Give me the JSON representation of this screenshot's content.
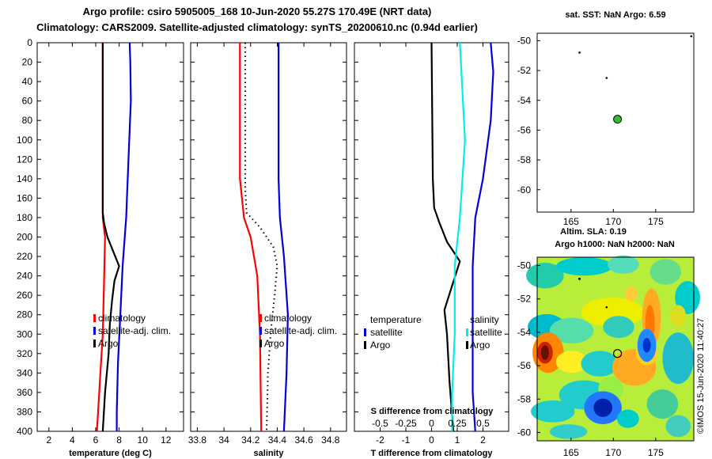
{
  "title_line1": "Argo profile: csiro 5905005_168 10-Jun-2020 55.27S 170.49E (NRT data)",
  "title_line2": "Climatology: CARS2009. Satellite-adjusted climatology: synTS_20200610.nc (0.94d earlier)",
  "colors": {
    "climatology": "#ff0000",
    "satellite": "#0000dd",
    "argo": "#000000",
    "satellite_salinity": "#00eeee",
    "marker_fill": "#33bb33"
  },
  "chart_data": [
    {
      "type": "line",
      "id": "temperature",
      "xlabel": "temperature (deg C)",
      "ylabel": "",
      "xlim": [
        1,
        13.5
      ],
      "ylim": [
        400,
        0
      ],
      "xticks": [
        2,
        4,
        6,
        8,
        10,
        12
      ],
      "yticks": [
        0,
        20,
        40,
        60,
        80,
        100,
        120,
        140,
        160,
        180,
        200,
        220,
        240,
        260,
        280,
        300,
        320,
        340,
        360,
        380,
        400
      ],
      "legend": [
        "climatology",
        "satellite-adj. clim.",
        "Argo"
      ],
      "series": [
        {
          "name": "climatology",
          "color": "#ff0000",
          "depth": [
            0,
            140,
            180,
            200,
            250,
            300,
            340,
            380,
            400
          ],
          "values": [
            6.6,
            6.6,
            6.6,
            6.8,
            6.7,
            6.6,
            6.4,
            6.2,
            6.1
          ]
        },
        {
          "name": "satellite-adj. clim.",
          "color": "#0000dd",
          "depth": [
            0,
            20,
            60,
            120,
            180,
            230,
            280,
            330,
            380,
            400
          ],
          "values": [
            8.9,
            8.95,
            9.0,
            8.8,
            8.6,
            8.3,
            8.1,
            7.9,
            7.8,
            7.8
          ]
        },
        {
          "name": "Argo",
          "color": "#000000",
          "depth": [
            0,
            100,
            175,
            185,
            200,
            215,
            230,
            245,
            265,
            290,
            320,
            360,
            400
          ],
          "values": [
            6.6,
            6.6,
            6.6,
            6.7,
            7.0,
            7.5,
            8.0,
            7.6,
            7.4,
            7.2,
            7.1,
            6.8,
            6.6
          ]
        }
      ]
    },
    {
      "type": "line",
      "id": "salinity",
      "xlabel": "salinity",
      "xlim": [
        33.75,
        34.92
      ],
      "ylim": [
        400,
        0
      ],
      "xticks": [
        33.8,
        34,
        34.2,
        34.4,
        34.6,
        34.8
      ],
      "legend": [
        "climatology",
        "satellite-adj. clim.",
        "Argo"
      ],
      "series": [
        {
          "name": "climatology",
          "color": "#ff0000",
          "depth": [
            0,
            140,
            180,
            200,
            240,
            300,
            400
          ],
          "values": [
            34.12,
            34.12,
            34.15,
            34.2,
            34.25,
            34.27,
            34.28
          ]
        },
        {
          "name": "satellite-adj. clim.",
          "color": "#0000dd",
          "depth": [
            0,
            140,
            180,
            220,
            280,
            340,
            400
          ],
          "values": [
            34.41,
            34.41,
            34.42,
            34.45,
            34.48,
            34.47,
            34.45
          ]
        },
        {
          "name": "Argo",
          "color": "#000000",
          "style": "dotted",
          "depth": [
            0,
            150,
            175,
            190,
            210,
            230,
            260,
            300,
            340,
            400
          ],
          "values": [
            34.16,
            34.16,
            34.17,
            34.27,
            34.37,
            34.4,
            34.38,
            34.35,
            34.33,
            34.32
          ]
        }
      ]
    },
    {
      "type": "line",
      "id": "difference",
      "xlabel": "T difference from climatology",
      "xlabel_top": "S difference from climatology",
      "xlim": [
        -3,
        3
      ],
      "ylim": [
        400,
        0
      ],
      "xticks_T": [
        -2,
        -1,
        0,
        1,
        2
      ],
      "xticks_T_labels": [
        "-2",
        "-1",
        "0",
        "1",
        "2"
      ],
      "xticks_S_labels": [
        "-0.5",
        "-0.25",
        "0",
        "0.25",
        "0.5"
      ],
      "legend_temperature": [
        "temperature",
        "satellite",
        "Argo"
      ],
      "legend_salinity": [
        "salinity",
        "satellite",
        "Argo"
      ],
      "series": [
        {
          "name": "T argo",
          "color": "#000000",
          "depth": [
            0,
            140,
            170,
            185,
            205,
            225,
            250,
            275,
            300,
            350,
            400
          ],
          "values": [
            0.0,
            0.05,
            0.1,
            0.3,
            0.6,
            1.1,
            0.8,
            0.5,
            0.6,
            0.7,
            0.85
          ]
        },
        {
          "name": "T satellite",
          "color": "#0000dd",
          "depth": [
            0,
            30,
            80,
            140,
            180,
            230,
            300,
            360,
            400
          ],
          "values": [
            2.3,
            2.4,
            2.3,
            2.0,
            1.7,
            1.6,
            1.6,
            1.6,
            1.7
          ]
        },
        {
          "name": "S satellite",
          "color": "#00eeee",
          "depth": [
            0,
            100,
            180,
            230,
            300,
            360,
            400
          ],
          "values": [
            1.1,
            1.3,
            1.1,
            0.9,
            0.9,
            0.8,
            0.8
          ]
        }
      ]
    },
    {
      "type": "scatter",
      "id": "sst-map",
      "title": "sat. SST: NaN Argo: 6.59",
      "xlim": [
        161,
        179.5
      ],
      "ylim": [
        -61.5,
        -49.5
      ],
      "xticks": [
        165,
        170,
        175
      ],
      "yticks": [
        -50,
        -52,
        -54,
        -56,
        -58,
        -60
      ],
      "xtick_labels": [
        "165",
        "170",
        "175"
      ],
      "ytick_labels": [
        "-50",
        "-52",
        "-54",
        "-56",
        "-58",
        "-60"
      ],
      "points": [
        {
          "lon": 170.49,
          "lat": -55.27,
          "kind": "argo"
        },
        {
          "lon": 166,
          "lat": -50.8,
          "kind": "island"
        },
        {
          "lon": 169.2,
          "lat": -52.5,
          "kind": "island"
        },
        {
          "lon": 179.2,
          "lat": -49.7,
          "kind": "island"
        }
      ]
    },
    {
      "type": "heatmap",
      "id": "sla-map",
      "title1": "Altim. SLA: 0.19",
      "title2": "Argo h1000: NaN h2000: NaN",
      "xlim": [
        161,
        179.5
      ],
      "ylim": [
        -60.5,
        -49.5
      ],
      "xticks": [
        165,
        170,
        175
      ],
      "yticks": [
        -50,
        -52,
        -54,
        -56,
        -58,
        -60
      ],
      "xtick_labels": [
        "165",
        "170",
        "175"
      ],
      "ytick_labels": [
        "-50",
        "-52",
        "-54",
        "-56",
        "-58",
        "-60"
      ],
      "point": {
        "lon": 170.49,
        "lat": -55.27
      }
    }
  ],
  "credit": "©IMOS 15-Jun-2020 11:40:27"
}
